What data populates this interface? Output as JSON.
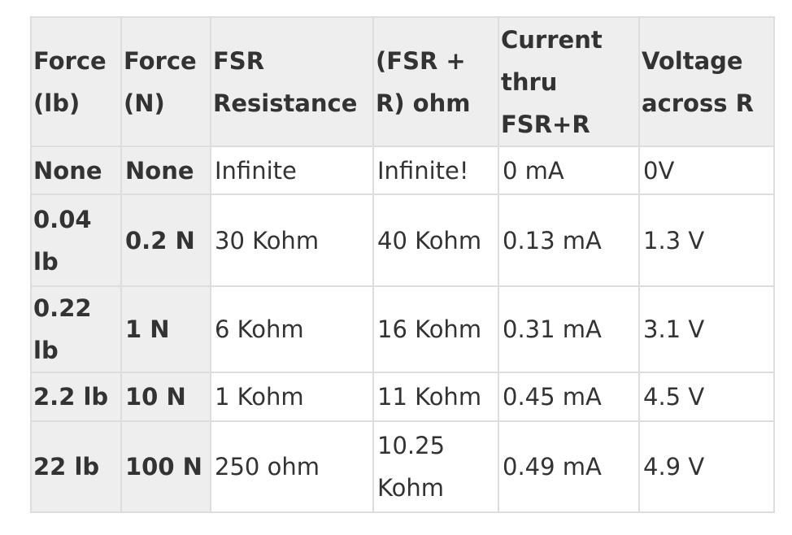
{
  "table": {
    "headers": [
      "Force (lb)",
      "Force (N)",
      "FSR Resistance",
      "(FSR + R) ohm",
      "Current thru FSR+R",
      "Voltage across R"
    ],
    "rows": [
      [
        "None",
        "None",
        "Infinite",
        "Infinite!",
        "0 mA",
        "0V"
      ],
      [
        "0.04 lb",
        "0.2 N",
        "30 Kohm",
        "40 Kohm",
        "0.13 mA",
        "1.3 V"
      ],
      [
        "0.22 lb",
        "1 N",
        "6 Kohm",
        "16 Kohm",
        "0.31 mA",
        "3.1 V"
      ],
      [
        "2.2 lb",
        "10 N",
        "1 Kohm",
        "11 Kohm",
        "0.45 mA",
        "4.5 V"
      ],
      [
        "22 lb",
        "100 N",
        "250 ohm",
        "10.25 Kohm",
        "0.49 mA",
        "4.9 V"
      ]
    ]
  }
}
